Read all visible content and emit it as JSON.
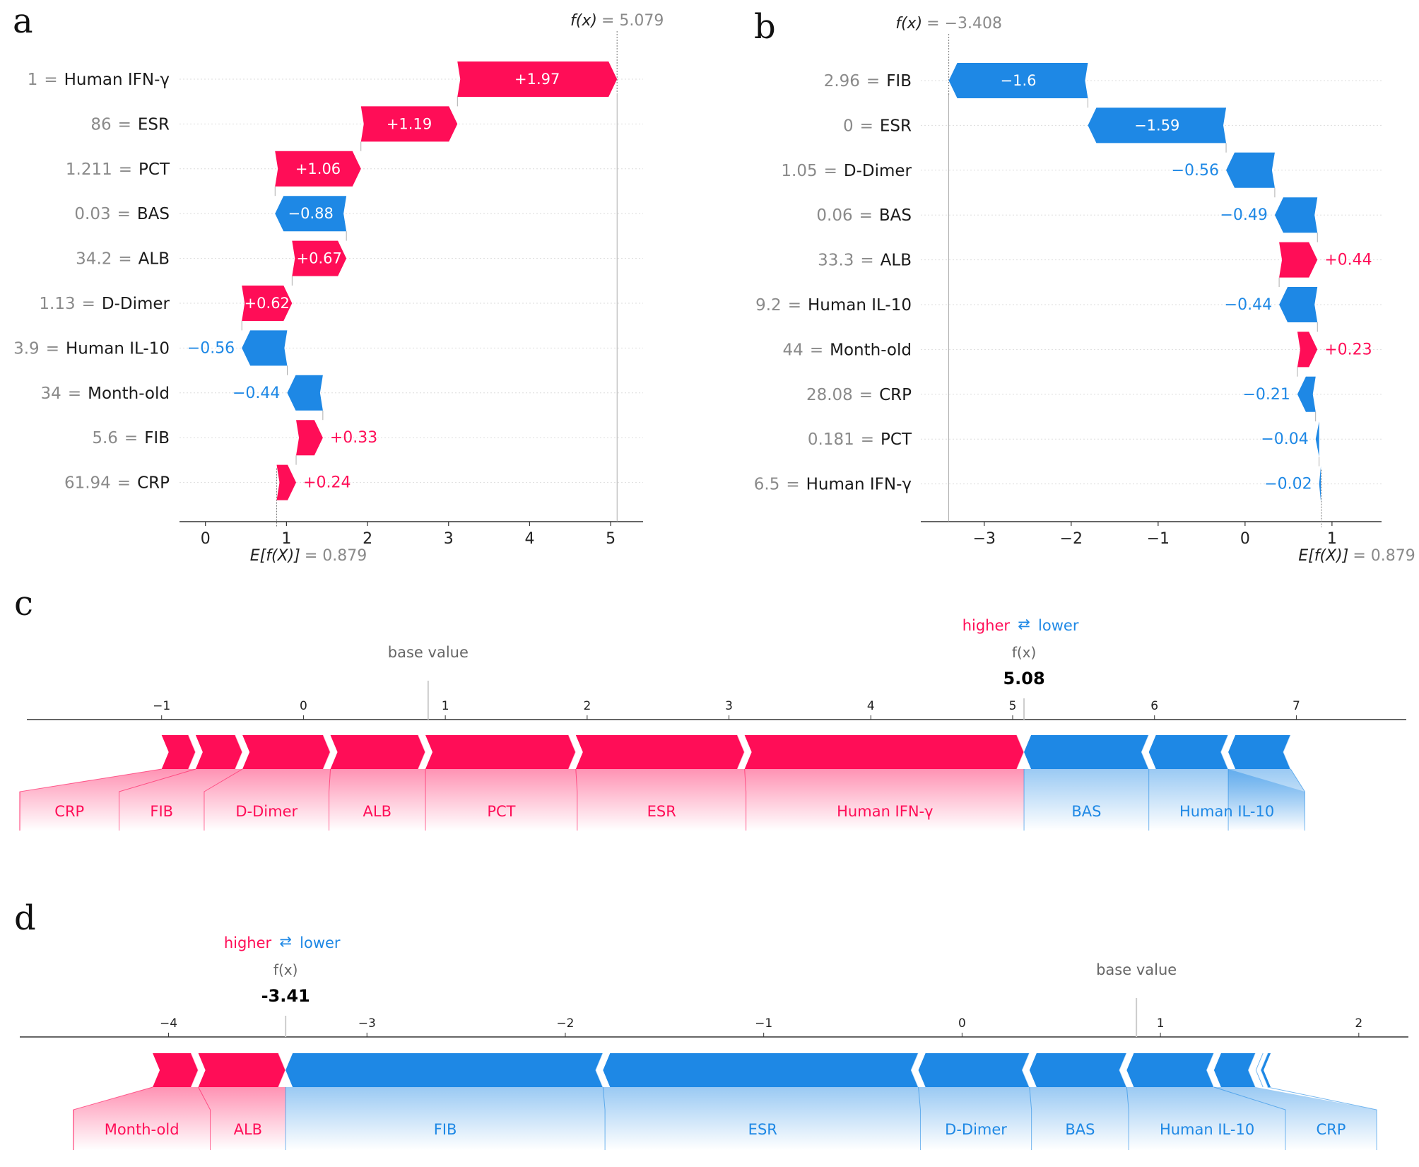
{
  "colors": {
    "pos": "#ff0d57",
    "neg": "#1e88e5",
    "grid": "#cccccc",
    "axis": "#333333",
    "grey": "#8a8a8a"
  },
  "panels": {
    "a": "a",
    "b": "b",
    "c": "c",
    "d": "d"
  },
  "chart_data": [
    {
      "type": "waterfall",
      "panel": "a",
      "fx_label": "f(x)",
      "fx_eq": "= 5.079",
      "fx": 5.079,
      "ex_label": "E[f(X)]",
      "ex_eq": "= 0.879",
      "base": 0.879,
      "xlim": [
        -0.32,
        5.4
      ],
      "ticks": [
        "0",
        "1",
        "2",
        "3",
        "4",
        "5"
      ],
      "tick_values": [
        0,
        1,
        2,
        3,
        4,
        5
      ],
      "eq": "=",
      "features": [
        {
          "value": "1",
          "name": "Human IFN-γ",
          "shap": 1.97,
          "label": "+1.97"
        },
        {
          "value": "86",
          "name": "ESR",
          "shap": 1.19,
          "label": "+1.19"
        },
        {
          "value": "1.211",
          "name": "PCT",
          "shap": 1.06,
          "label": "+1.06"
        },
        {
          "value": "0.03",
          "name": "BAS",
          "shap": -0.88,
          "label": "−0.88"
        },
        {
          "value": "34.2",
          "name": "ALB",
          "shap": 0.67,
          "label": "+0.67"
        },
        {
          "value": "1.13",
          "name": "D-Dimer",
          "shap": 0.62,
          "label": "+0.62"
        },
        {
          "value": "3.9",
          "name": "Human IL-10",
          "shap": -0.56,
          "label": "−0.56"
        },
        {
          "value": "34",
          "name": "Month-old",
          "shap": -0.44,
          "label": "−0.44"
        },
        {
          "value": "5.6",
          "name": "FIB",
          "shap": 0.33,
          "label": "+0.33"
        },
        {
          "value": "61.94",
          "name": "CRP",
          "shap": 0.24,
          "label": "+0.24"
        }
      ]
    },
    {
      "type": "waterfall",
      "panel": "b",
      "fx_label": "f(x)",
      "fx_eq": "= −3.408",
      "fx": -3.408,
      "ex_label": "E[f(X)]",
      "ex_eq": "= 0.879",
      "base": 0.879,
      "xlim": [
        -3.73,
        1.57
      ],
      "ticks": [
        "−3",
        "−2",
        "−1",
        "0",
        "1"
      ],
      "tick_values": [
        -3,
        -2,
        -1,
        0,
        1
      ],
      "eq": "=",
      "features": [
        {
          "value": "2.96",
          "name": "FIB",
          "shap": -1.6,
          "label": "−1.6"
        },
        {
          "value": "0",
          "name": "ESR",
          "shap": -1.59,
          "label": "−1.59"
        },
        {
          "value": "1.05",
          "name": "D-Dimer",
          "shap": -0.56,
          "label": "−0.56"
        },
        {
          "value": "0.06",
          "name": "BAS",
          "shap": -0.49,
          "label": "−0.49"
        },
        {
          "value": "33.3",
          "name": "ALB",
          "shap": 0.44,
          "label": "+0.44"
        },
        {
          "value": "9.2",
          "name": "Human IL-10",
          "shap": -0.44,
          "label": "−0.44"
        },
        {
          "value": "44",
          "name": "Month-old",
          "shap": 0.23,
          "label": "+0.23"
        },
        {
          "value": "28.08",
          "name": "CRP",
          "shap": -0.21,
          "label": "−0.21"
        },
        {
          "value": "0.181",
          "name": "PCT",
          "shap": -0.04,
          "label": "−0.04"
        },
        {
          "value": "6.5",
          "name": "Human IFN-γ",
          "shap": -0.02,
          "label": "−0.02"
        }
      ]
    },
    {
      "type": "force",
      "panel": "c",
      "higher": "higher",
      "arrows": "⇄",
      "lower": "lower",
      "base_label": "base value",
      "fx_label": "f(x)",
      "fx_text": "5.08",
      "fx": 5.08,
      "base": 0.879,
      "xlim": [
        -2.0,
        7.8
      ],
      "ticks": [
        "−1",
        "0",
        "1",
        "2",
        "3",
        "4",
        "5",
        "6",
        "7"
      ],
      "tick_values": [
        -1,
        0,
        1,
        2,
        3,
        4,
        5,
        6,
        7
      ],
      "pos_segments": [
        {
          "name": "CRP",
          "from": -1.0,
          "to": -0.76,
          "label_from": -2.0,
          "label_to": -1.3
        },
        {
          "name": "FIB",
          "from": -0.76,
          "to": -0.43,
          "label_from": -1.3,
          "label_to": -0.7
        },
        {
          "name": "D-Dimer",
          "from": -0.43,
          "to": 0.19,
          "label_from": -0.7,
          "label_to": 0.18
        },
        {
          "name": "ALB",
          "from": 0.19,
          "to": 0.86,
          "label_from": 0.18,
          "label_to": 0.86
        },
        {
          "name": "PCT",
          "from": 0.86,
          "to": 1.92,
          "label_from": 0.86,
          "label_to": 1.93
        },
        {
          "name": "ESR",
          "from": 1.92,
          "to": 3.11,
          "label_from": 1.93,
          "label_to": 3.12
        },
        {
          "name": "Human IFN-γ",
          "from": 3.11,
          "to": 5.08,
          "label_from": 3.12,
          "label_to": 5.08
        }
      ],
      "neg_segments": [
        {
          "name": "BAS",
          "from": 5.08,
          "to": 5.96,
          "label_from": 5.08,
          "label_to": 5.96
        },
        {
          "name": "Human IL-10",
          "from": 5.96,
          "to": 6.52,
          "label_from": 5.96,
          "label_to": 7.06
        },
        {
          "name": "",
          "from": 6.52,
          "to": 6.96,
          "label_from": 6.52,
          "label_to": 7.06
        }
      ]
    },
    {
      "type": "force",
      "panel": "d",
      "higher": "higher",
      "arrows": "⇄",
      "lower": "lower",
      "base_label": "base value",
      "fx_label": "f(x)",
      "fx_text": "-3.41",
      "fx": -3.41,
      "base": 0.879,
      "xlim": [
        -4.75,
        2.25
      ],
      "ticks": [
        "−4",
        "−3",
        "−2",
        "−1",
        "0",
        "1",
        "2"
      ],
      "tick_values": [
        -4,
        -3,
        -2,
        -1,
        0,
        1,
        2
      ],
      "pos_segments": [
        {
          "name": "Month-old",
          "from": -4.08,
          "to": -3.85,
          "label_from": -4.48,
          "label_to": -3.79
        },
        {
          "name": "ALB",
          "from": -3.85,
          "to": -3.41,
          "label_from": -3.79,
          "label_to": -3.41
        }
      ],
      "neg_segments": [
        {
          "name": "FIB",
          "from": -3.41,
          "to": -1.81,
          "label_from": -3.41,
          "label_to": -1.8
        },
        {
          "name": "ESR",
          "from": -1.81,
          "to": -0.22,
          "label_from": -1.8,
          "label_to": -0.21
        },
        {
          "name": "D-Dimer",
          "from": -0.22,
          "to": 0.34,
          "label_from": -0.21,
          "label_to": 0.35
        },
        {
          "name": "BAS",
          "from": 0.34,
          "to": 0.83,
          "label_from": 0.35,
          "label_to": 0.84
        },
        {
          "name": "Human IL-10",
          "from": 0.83,
          "to": 1.27,
          "label_from": 0.84,
          "label_to": 1.63
        },
        {
          "name": "CRP",
          "from": 1.27,
          "to": 1.48,
          "label_from": 1.63,
          "label_to": 2.09
        },
        {
          "name": "",
          "from": 1.48,
          "to": 1.52,
          "label_from": 2.09,
          "label_to": 2.09
        },
        {
          "name": "",
          "from": 1.52,
          "to": 1.54,
          "label_from": 2.09,
          "label_to": 2.09
        }
      ]
    }
  ]
}
